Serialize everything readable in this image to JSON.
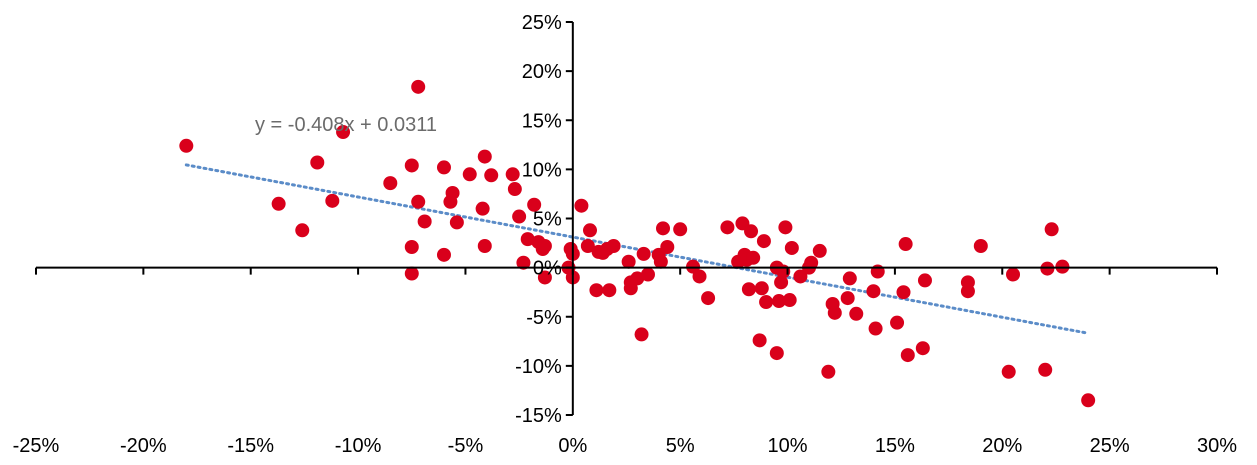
{
  "chart_data": {
    "type": "scatter",
    "title": "",
    "xlabel": "",
    "ylabel": "",
    "xlim": [
      -0.25,
      0.3
    ],
    "ylim": [
      -0.15,
      0.25
    ],
    "x_ticks": [
      -0.25,
      -0.2,
      -0.15,
      -0.1,
      -0.05,
      0.0,
      0.05,
      0.1,
      0.15,
      0.2,
      0.25,
      0.3
    ],
    "x_tick_labels": [
      "-25%",
      "-20%",
      "-15%",
      "-10%",
      "-5%",
      "0%",
      "5%",
      "10%",
      "15%",
      "20%",
      "25%",
      "30%"
    ],
    "y_ticks": [
      -0.15,
      -0.1,
      -0.05,
      0.0,
      0.05,
      0.1,
      0.15,
      0.2,
      0.25
    ],
    "y_tick_labels": [
      "-15%",
      "-10%",
      "-5%",
      "0%",
      "5%",
      "10%",
      "15%",
      "20%",
      "25%"
    ],
    "grid": false,
    "marker_color": "#d9001b",
    "trendline_color": "#5b8cc8",
    "trendline": {
      "slope": -0.408,
      "intercept": 0.0311,
      "x_range": [
        -0.18,
        0.24
      ],
      "equation_label": "y = -0.408x + 0.0311"
    },
    "points": [
      {
        "x": -0.18,
        "y": 0.124
      },
      {
        "x": -0.137,
        "y": 0.065
      },
      {
        "x": -0.126,
        "y": 0.038
      },
      {
        "x": -0.119,
        "y": 0.107
      },
      {
        "x": -0.112,
        "y": 0.068
      },
      {
        "x": -0.107,
        "y": 0.138
      },
      {
        "x": -0.085,
        "y": 0.086
      },
      {
        "x": -0.075,
        "y": 0.104
      },
      {
        "x": -0.075,
        "y": 0.021
      },
      {
        "x": -0.075,
        "y": -0.006
      },
      {
        "x": -0.072,
        "y": 0.184
      },
      {
        "x": -0.072,
        "y": 0.067
      },
      {
        "x": -0.069,
        "y": 0.047
      },
      {
        "x": -0.06,
        "y": 0.102
      },
      {
        "x": -0.06,
        "y": 0.013
      },
      {
        "x": -0.057,
        "y": 0.067
      },
      {
        "x": -0.056,
        "y": 0.076
      },
      {
        "x": -0.054,
        "y": 0.046
      },
      {
        "x": -0.048,
        "y": 0.095
      },
      {
        "x": -0.042,
        "y": 0.06
      },
      {
        "x": -0.041,
        "y": 0.113
      },
      {
        "x": -0.041,
        "y": 0.022
      },
      {
        "x": -0.038,
        "y": 0.094
      },
      {
        "x": -0.028,
        "y": 0.095
      },
      {
        "x": -0.027,
        "y": 0.08
      },
      {
        "x": -0.025,
        "y": 0.052
      },
      {
        "x": -0.023,
        "y": 0.005
      },
      {
        "x": -0.021,
        "y": 0.029
      },
      {
        "x": -0.018,
        "y": 0.064
      },
      {
        "x": -0.016,
        "y": 0.026
      },
      {
        "x": -0.014,
        "y": 0.019
      },
      {
        "x": -0.013,
        "y": -0.01
      },
      {
        "x": -0.013,
        "y": 0.022
      },
      {
        "x": -0.002,
        "y": 0.0
      },
      {
        "x": -0.001,
        "y": 0.019
      },
      {
        "x": 0.0,
        "y": 0.014
      },
      {
        "x": 0.0,
        "y": -0.01
      },
      {
        "x": 0.004,
        "y": 0.063
      },
      {
        "x": 0.007,
        "y": 0.022
      },
      {
        "x": 0.008,
        "y": 0.038
      },
      {
        "x": 0.011,
        "y": -0.023
      },
      {
        "x": 0.012,
        "y": 0.016
      },
      {
        "x": 0.014,
        "y": 0.015
      },
      {
        "x": 0.016,
        "y": 0.019
      },
      {
        "x": 0.017,
        "y": -0.023
      },
      {
        "x": 0.019,
        "y": 0.022
      },
      {
        "x": 0.026,
        "y": 0.006
      },
      {
        "x": 0.027,
        "y": -0.015
      },
      {
        "x": 0.027,
        "y": -0.021
      },
      {
        "x": 0.03,
        "y": -0.011
      },
      {
        "x": 0.032,
        "y": -0.068
      },
      {
        "x": 0.033,
        "y": 0.014
      },
      {
        "x": 0.035,
        "y": -0.007
      },
      {
        "x": 0.04,
        "y": 0.013
      },
      {
        "x": 0.041,
        "y": 0.006
      },
      {
        "x": 0.042,
        "y": 0.04
      },
      {
        "x": 0.044,
        "y": 0.021
      },
      {
        "x": 0.05,
        "y": 0.039
      },
      {
        "x": 0.056,
        "y": 0.001
      },
      {
        "x": 0.059,
        "y": -0.009
      },
      {
        "x": 0.063,
        "y": -0.031
      },
      {
        "x": 0.072,
        "y": 0.041
      },
      {
        "x": 0.077,
        "y": 0.006
      },
      {
        "x": 0.079,
        "y": 0.045
      },
      {
        "x": 0.08,
        "y": 0.013
      },
      {
        "x": 0.081,
        "y": 0.008
      },
      {
        "x": 0.082,
        "y": -0.022
      },
      {
        "x": 0.083,
        "y": 0.037
      },
      {
        "x": 0.084,
        "y": 0.01
      },
      {
        "x": 0.087,
        "y": -0.074
      },
      {
        "x": 0.088,
        "y": -0.021
      },
      {
        "x": 0.089,
        "y": 0.027
      },
      {
        "x": 0.09,
        "y": -0.035
      },
      {
        "x": 0.095,
        "y": -0.087
      },
      {
        "x": 0.095,
        "y": 0.0
      },
      {
        "x": 0.096,
        "y": -0.034
      },
      {
        "x": 0.097,
        "y": -0.015
      },
      {
        "x": 0.098,
        "y": -0.004
      },
      {
        "x": 0.099,
        "y": 0.041
      },
      {
        "x": 0.101,
        "y": -0.033
      },
      {
        "x": 0.102,
        "y": 0.02
      },
      {
        "x": 0.106,
        "y": -0.009
      },
      {
        "x": 0.11,
        "y": 0.0
      },
      {
        "x": 0.111,
        "y": 0.005
      },
      {
        "x": 0.115,
        "y": 0.017
      },
      {
        "x": 0.119,
        "y": -0.106
      },
      {
        "x": 0.121,
        "y": -0.037
      },
      {
        "x": 0.122,
        "y": -0.046
      },
      {
        "x": 0.128,
        "y": -0.031
      },
      {
        "x": 0.129,
        "y": -0.011
      },
      {
        "x": 0.132,
        "y": -0.047
      },
      {
        "x": 0.14,
        "y": -0.024
      },
      {
        "x": 0.141,
        "y": -0.062
      },
      {
        "x": 0.142,
        "y": -0.004
      },
      {
        "x": 0.151,
        "y": -0.056
      },
      {
        "x": 0.154,
        "y": -0.025
      },
      {
        "x": 0.155,
        "y": 0.024
      },
      {
        "x": 0.156,
        "y": -0.089
      },
      {
        "x": 0.163,
        "y": -0.082
      },
      {
        "x": 0.164,
        "y": -0.013
      },
      {
        "x": 0.184,
        "y": -0.024
      },
      {
        "x": 0.184,
        "y": -0.015
      },
      {
        "x": 0.19,
        "y": 0.022
      },
      {
        "x": 0.203,
        "y": -0.106
      },
      {
        "x": 0.205,
        "y": -0.007
      },
      {
        "x": 0.22,
        "y": -0.104
      },
      {
        "x": 0.221,
        "y": -0.001
      },
      {
        "x": 0.223,
        "y": 0.039
      },
      {
        "x": 0.228,
        "y": 0.001
      },
      {
        "x": 0.24,
        "y": -0.135
      }
    ]
  }
}
